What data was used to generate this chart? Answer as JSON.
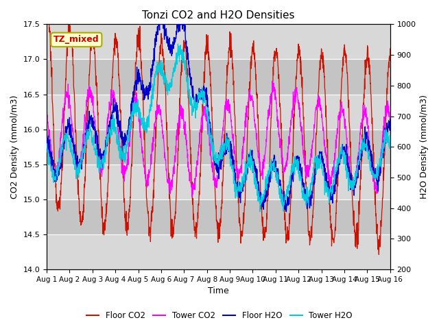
{
  "title": "Tonzi CO2 and H2O Densities",
  "xlabel": "Time",
  "ylabel_left": "CO2 Density (mmol/m3)",
  "ylabel_right": "H2O Density (mmol/m3)",
  "ylim_left": [
    14.0,
    17.5
  ],
  "ylim_right": [
    200,
    1000
  ],
  "annotation_text": "TZ_mixed",
  "annotation_bg": "#ffffcc",
  "annotation_border": "#aaaa00",
  "annotation_color": "#cc0000",
  "colors": {
    "floor_co2": "#cc1100",
    "tower_co2": "#ff00ff",
    "floor_h2o": "#0000cc",
    "tower_h2o": "#00ccdd"
  },
  "legend_labels": [
    "Floor CO2",
    "Tower CO2",
    "Floor H2O",
    "Tower H2O"
  ],
  "n_days": 15,
  "points_per_day": 96,
  "bg_light": "#d8d8d8",
  "bg_dark": "#c4c4c4",
  "grid_color": "#ffffff",
  "tick_labels": [
    "Aug 1",
    "Aug 2",
    "Aug 3",
    "Aug 4",
    "Aug 5",
    "Aug 6",
    "Aug 7",
    "Aug 8",
    "Aug 9",
    "Aug 10",
    "Aug 11",
    "Aug 12",
    "Aug 13",
    "Aug 14",
    "Aug 15",
    "Aug 16"
  ]
}
